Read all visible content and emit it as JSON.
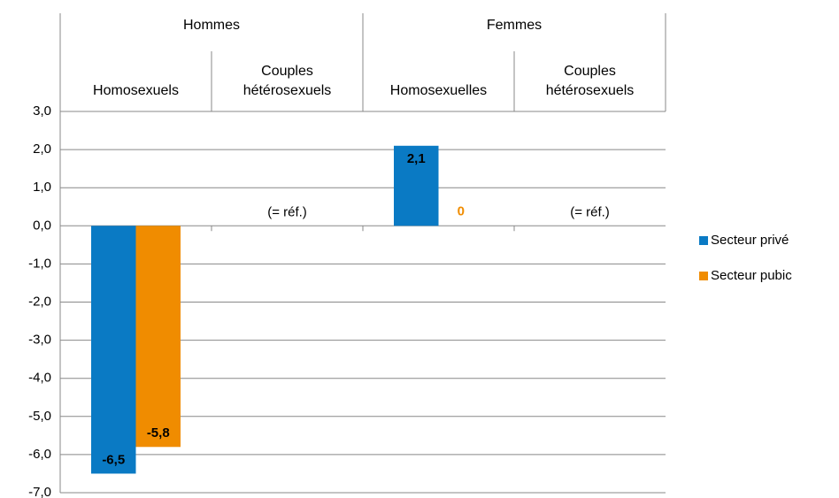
{
  "chart_data": {
    "type": "bar",
    "groups": [
      {
        "name": "Hommes",
        "span": 2
      },
      {
        "name": "Femmes",
        "span": 2
      }
    ],
    "categories": [
      "Homosexuels",
      "Couples\nhétérosexuels",
      "Homosexuelles",
      "Couples\nhétérosexuels"
    ],
    "series": [
      {
        "name": "Secteur privé",
        "color": "#0a7ac4",
        "values": [
          -6.5,
          null,
          2.1,
          null
        ],
        "value_labels": [
          "-6,5",
          null,
          "2,1",
          null
        ]
      },
      {
        "name": "Secteur pubic",
        "color": "#f08c00",
        "values": [
          -5.8,
          null,
          0,
          null
        ],
        "value_labels": [
          "-5,8",
          null,
          "0",
          null
        ]
      }
    ],
    "annotations": [
      {
        "text": "(= réf.)",
        "category": 1
      },
      {
        "text": "(= réf.)",
        "category": 3
      }
    ],
    "ylim": [
      -7,
      3
    ],
    "yticks": [
      {
        "value": 3,
        "label": "3,0"
      },
      {
        "value": 2,
        "label": "2,0"
      },
      {
        "value": 1,
        "label": "1,0"
      },
      {
        "value": 0,
        "label": "0,0"
      },
      {
        "value": -1,
        "label": "-1,0"
      },
      {
        "value": -2,
        "label": "-2,0"
      },
      {
        "value": -3,
        "label": "-3,0"
      },
      {
        "value": -4,
        "label": "-4,0"
      },
      {
        "value": -5,
        "label": "-5,0"
      },
      {
        "value": -6,
        "label": "-6,0"
      },
      {
        "value": -7,
        "label": "-7,0"
      }
    ],
    "grid": true,
    "legend": "right"
  }
}
